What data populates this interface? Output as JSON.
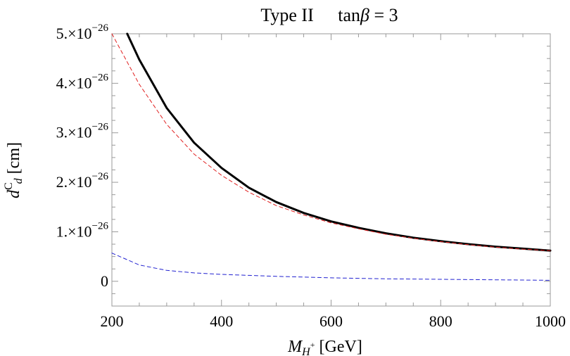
{
  "chart_data": {
    "type": "line",
    "title": {
      "model": "Type II",
      "tan_prefix": "tan",
      "beta": "β",
      "tan_suffix": " = 3"
    },
    "xlabel": {
      "main": "M",
      "sub": "H",
      "sup": "+",
      "unit": " [GeV]"
    },
    "ylabel": {
      "main": "d",
      "sup": "C",
      "sub": "d",
      "unit": " [cm]"
    },
    "xlim": [
      200,
      1000
    ],
    "ylim": [
      -5e-27,
      5e-26
    ],
    "x_ticks": [
      {
        "value": 200,
        "label": "200"
      },
      {
        "value": 400,
        "label": "400"
      },
      {
        "value": 600,
        "label": "600"
      },
      {
        "value": 800,
        "label": "800"
      },
      {
        "value": 1000,
        "label": "1000"
      }
    ],
    "y_ticks": [
      {
        "value": 0,
        "mant": "0",
        "exp": ""
      },
      {
        "value": 1e-26,
        "mant": "1.×10",
        "exp": "−26"
      },
      {
        "value": 2e-26,
        "mant": "2.×10",
        "exp": "−26"
      },
      {
        "value": 3e-26,
        "mant": "3.×10",
        "exp": "−26"
      },
      {
        "value": 4e-26,
        "mant": "4.×10",
        "exp": "−26"
      },
      {
        "value": 5e-26,
        "mant": "5.×10",
        "exp": "−26"
      }
    ],
    "grid": false,
    "series": [
      {
        "style": "solid",
        "color": "#000000",
        "x": [
          228,
          250,
          300,
          350,
          400,
          450,
          500,
          550,
          600,
          650,
          700,
          750,
          800,
          850,
          900,
          950,
          1000
        ],
        "y": [
          5e-26,
          4.48e-26,
          3.5e-26,
          2.8e-26,
          2.29e-26,
          1.89e-26,
          1.6e-26,
          1.38e-26,
          1.21e-26,
          1.08e-26,
          9.7e-27,
          8.8e-27,
          8.1e-27,
          7.5e-27,
          7e-27,
          6.6e-27,
          6.2e-27
        ]
      },
      {
        "style": "dashed",
        "color": "#e02020",
        "x": [
          200,
          250,
          300,
          350,
          400,
          450,
          500,
          550,
          600,
          650,
          700,
          750,
          800,
          850,
          900,
          950,
          1000
        ],
        "y": [
          5e-26,
          3.98e-26,
          3.17e-26,
          2.57e-26,
          2.14e-26,
          1.8e-26,
          1.53e-26,
          1.34e-26,
          1.18e-26,
          1.06e-26,
          9.5e-27,
          8.7e-27,
          8e-27,
          7.4e-27,
          6.9e-27,
          6.5e-27,
          6.2e-27
        ]
      },
      {
        "style": "dashed",
        "color": "#2020d0",
        "x": [
          200,
          250,
          300,
          350,
          400,
          450,
          500,
          600,
          700,
          800,
          900,
          1000
        ],
        "y": [
          5.7e-27,
          3.3e-27,
          2.2e-27,
          1.7e-27,
          1.4e-27,
          1.2e-27,
          1e-27,
          7e-28,
          5e-28,
          4e-28,
          3e-28,
          2e-28
        ]
      }
    ]
  }
}
